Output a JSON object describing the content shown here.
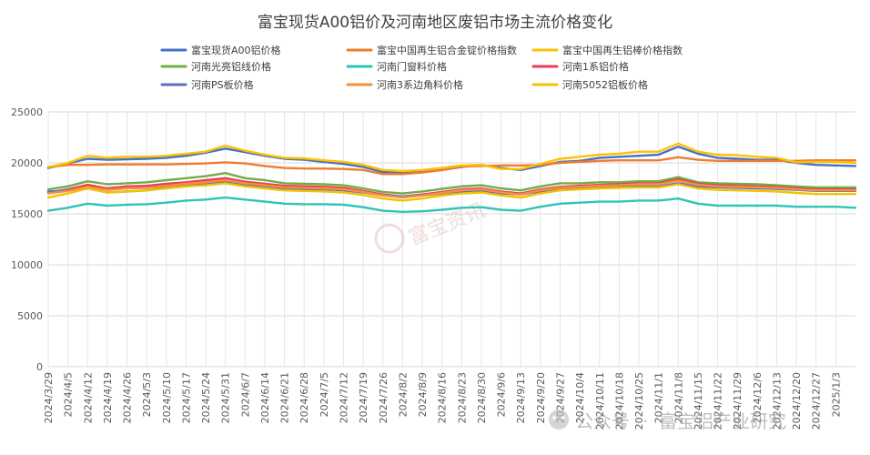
{
  "chart_data": {
    "type": "line",
    "title": "富宝现货A00铝价及河南地区废铝市场主流价格变化",
    "ylim": [
      0,
      25000
    ],
    "yticks": [
      0,
      5000,
      10000,
      15000,
      20000,
      25000
    ],
    "ytick_labels": [
      "0",
      "5000",
      "10000",
      "15000",
      "20000",
      "25000"
    ],
    "grid": "vertical-and-horizontal",
    "legend_position": "top",
    "x_range": [
      "2024/3/29",
      "2025/1/7"
    ],
    "x_ticks": [
      "2024/3/29",
      "2024/4/5",
      "2024/4/12",
      "2024/4/19",
      "2024/4/26",
      "2024/5/3",
      "2024/5/10",
      "2024/5/17",
      "2024/5/24",
      "2024/5/31",
      "2024/6/7",
      "2024/6/14",
      "2024/6/21",
      "2024/6/28",
      "2024/7/5",
      "2024/7/12",
      "2024/7/19",
      "2024/7/26",
      "2024/8/2",
      "2024/8/9",
      "2024/8/16",
      "2024/8/23",
      "2024/8/30",
      "2024/9/6",
      "2024/9/13",
      "2024/9/20",
      "2024/9/27",
      "2024/10/4",
      "2024/10/11",
      "2024/10/18",
      "2024/10/25",
      "2024/11/1",
      "2024/11/8",
      "2024/11/15",
      "2024/11/22",
      "2024/11/29",
      "2024/12/6",
      "2024/12/13",
      "2024/12/20",
      "2024/12/27",
      "2025/1/3"
    ],
    "x": [
      "2024/3/29",
      "2024/4/5",
      "2024/4/12",
      "2024/4/19",
      "2024/4/26",
      "2024/5/3",
      "2024/5/10",
      "2024/5/17",
      "2024/5/24",
      "2024/5/31",
      "2024/6/7",
      "2024/6/14",
      "2024/6/21",
      "2024/6/28",
      "2024/7/5",
      "2024/7/12",
      "2024/7/19",
      "2024/7/26",
      "2024/8/2",
      "2024/8/9",
      "2024/8/16",
      "2024/8/23",
      "2024/8/30",
      "2024/9/6",
      "2024/9/13",
      "2024/9/20",
      "2024/9/27",
      "2024/10/4",
      "2024/10/11",
      "2024/10/18",
      "2024/10/25",
      "2024/11/1",
      "2024/11/8",
      "2024/11/15",
      "2024/11/22",
      "2024/11/29",
      "2024/12/6",
      "2024/12/13",
      "2024/12/20",
      "2024/12/27",
      "2025/1/3",
      "2025/1/7"
    ],
    "series": [
      {
        "name": "富宝现货A00铝价格",
        "color": "#4472C4",
        "values": [
          19500,
          19950,
          20400,
          20300,
          20350,
          20400,
          20500,
          20700,
          21000,
          21400,
          21050,
          20700,
          20400,
          20300,
          20100,
          19900,
          19600,
          19100,
          19000,
          19100,
          19300,
          19600,
          19800,
          19500,
          19300,
          19700,
          20100,
          20200,
          20500,
          20600,
          20700,
          20800,
          21600,
          20900,
          20500,
          20400,
          20300,
          20300,
          20000,
          19800,
          19750,
          19700
        ]
      },
      {
        "name": "富宝中国再生铝合金锭价格指数",
        "color": "#ED7D31",
        "values": [
          19600,
          19800,
          19800,
          19850,
          19850,
          19850,
          19850,
          19900,
          19950,
          20050,
          19950,
          19700,
          19500,
          19450,
          19450,
          19400,
          19300,
          18900,
          18900,
          19050,
          19300,
          19650,
          19700,
          19750,
          19750,
          19800,
          20000,
          20100,
          20200,
          20250,
          20250,
          20250,
          20550,
          20300,
          20200,
          20200,
          20200,
          20200,
          20200,
          20250,
          20250,
          20250
        ]
      },
      {
        "name": "富宝中国再生铝棒价格指数",
        "color": "#FFC000",
        "values": [
          19600,
          20000,
          20700,
          20500,
          20600,
          20600,
          20700,
          20900,
          21100,
          21700,
          21200,
          20800,
          20500,
          20450,
          20250,
          20100,
          19800,
          19300,
          19200,
          19300,
          19500,
          19750,
          19800,
          19400,
          19400,
          19900,
          20400,
          20600,
          20800,
          20900,
          21100,
          21100,
          21900,
          21100,
          20800,
          20750,
          20600,
          20500,
          20050,
          20100,
          20100,
          20000
        ]
      },
      {
        "name": "河南光亮铝线价格",
        "color": "#70AD47",
        "values": [
          17400,
          17700,
          18200,
          17900,
          18000,
          18100,
          18300,
          18500,
          18700,
          19000,
          18500,
          18300,
          18000,
          17950,
          17900,
          17800,
          17500,
          17150,
          17000,
          17200,
          17450,
          17700,
          17800,
          17500,
          17300,
          17700,
          18000,
          18000,
          18100,
          18100,
          18200,
          18200,
          18600,
          18100,
          18000,
          17950,
          17900,
          17800,
          17700,
          17600,
          17600,
          17600
        ]
      },
      {
        "name": "河南门窗料价格",
        "color": "#2EC4B6",
        "values": [
          15300,
          15600,
          16000,
          15800,
          15900,
          15950,
          16100,
          16300,
          16400,
          16600,
          16400,
          16200,
          16000,
          15950,
          15950,
          15900,
          15650,
          15300,
          15200,
          15250,
          15400,
          15600,
          15650,
          15400,
          15300,
          15700,
          16000,
          16100,
          16200,
          16200,
          16300,
          16300,
          16500,
          16000,
          15800,
          15800,
          15800,
          15800,
          15700,
          15700,
          15700,
          15600
        ]
      },
      {
        "name": "河南1系铝价格",
        "color": "#E83E54",
        "values": [
          17100,
          17400,
          17850,
          17500,
          17700,
          17750,
          17950,
          18100,
          18300,
          18500,
          18150,
          17950,
          17750,
          17700,
          17650,
          17550,
          17250,
          16900,
          16700,
          16900,
          17150,
          17400,
          17500,
          17200,
          17000,
          17400,
          17650,
          17750,
          17850,
          17900,
          18000,
          18000,
          18400,
          17950,
          17800,
          17750,
          17700,
          17650,
          17500,
          17400,
          17400,
          17400
        ]
      },
      {
        "name": "河南PS板价格",
        "color": "#5B6FC4",
        "values": [
          17200,
          17300,
          17500,
          17100,
          17200,
          17300,
          17600,
          17800,
          18000,
          18100,
          17800,
          17700,
          17500,
          17400,
          17400,
          17300,
          17100,
          16800,
          16700,
          16800,
          17000,
          17200,
          17300,
          17000,
          16900,
          17200,
          17400,
          17500,
          17600,
          17650,
          17700,
          17700,
          18000,
          17700,
          17600,
          17550,
          17500,
          17450,
          17350,
          17250,
          17250,
          17250
        ]
      },
      {
        "name": "河南3系边角料价格",
        "color": "#F4913E",
        "values": [
          17000,
          17250,
          17650,
          17350,
          17500,
          17550,
          17750,
          17950,
          18100,
          18300,
          18000,
          17800,
          17600,
          17550,
          17500,
          17400,
          17150,
          16800,
          16600,
          16800,
          17050,
          17300,
          17400,
          17100,
          16900,
          17300,
          17550,
          17650,
          17750,
          17800,
          17900,
          17900,
          18250,
          17850,
          17700,
          17650,
          17600,
          17550,
          17400,
          17300,
          17300,
          17300
        ]
      },
      {
        "name": "河南5052铝板价格",
        "color": "#F2C200",
        "values": [
          16600,
          17000,
          17500,
          17100,
          17200,
          17300,
          17500,
          17700,
          17800,
          18000,
          17700,
          17500,
          17300,
          17250,
          17200,
          17100,
          16850,
          16500,
          16300,
          16500,
          16800,
          17000,
          17100,
          16800,
          16600,
          17000,
          17300,
          17400,
          17500,
          17550,
          17600,
          17600,
          17900,
          17500,
          17350,
          17300,
          17250,
          17200,
          17050,
          16950,
          16950,
          16950
        ]
      }
    ]
  },
  "watermark": {
    "center_text": "富宝资讯",
    "bottom_text_1": "公众号",
    "bottom_text_2": "富宝铝产业研究"
  }
}
